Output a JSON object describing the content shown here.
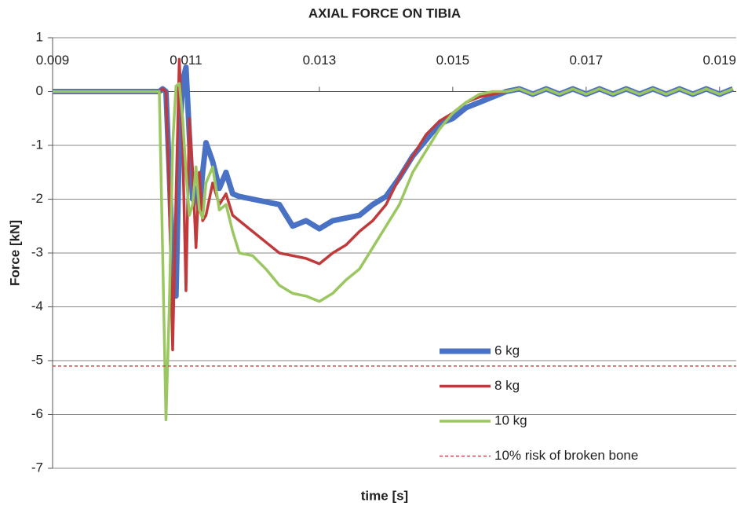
{
  "chart_data": {
    "type": "line",
    "title": "AXIAL FORCE ON TIBIA",
    "xlabel": "time [s]",
    "ylabel": "Force  [kN]",
    "xlim": [
      0.009,
      0.01925
    ],
    "xticks": [
      0.009,
      0.011,
      0.013,
      0.015,
      0.017,
      0.019
    ],
    "ylim": [
      -7,
      1
    ],
    "yticks": [
      1,
      0,
      -1,
      -2,
      -3,
      -4,
      -5,
      -6,
      -7
    ],
    "grid": true,
    "legend": "lower right",
    "x": [
      0.009,
      0.0106,
      0.01065,
      0.0107,
      0.01075,
      0.0108,
      0.01085,
      0.0109,
      0.01095,
      0.011,
      0.01105,
      0.0111,
      0.01115,
      0.0112,
      0.01125,
      0.0113,
      0.0114,
      0.0115,
      0.0116,
      0.0117,
      0.0118,
      0.012,
      0.0122,
      0.0124,
      0.0126,
      0.0128,
      0.013,
      0.0132,
      0.0134,
      0.0136,
      0.0138,
      0.014,
      0.0142,
      0.0144,
      0.0146,
      0.0148,
      0.015,
      0.0152,
      0.0154,
      0.0156,
      0.0158,
      0.016,
      0.0162,
      0.0164,
      0.0166,
      0.0168,
      0.017,
      0.0172,
      0.0174,
      0.0176,
      0.0178,
      0.018,
      0.0182,
      0.0184,
      0.0186,
      0.0188,
      0.019,
      0.0192
    ],
    "series": [
      {
        "name": "6 kg",
        "color": "#4a72c4",
        "width": 7,
        "values": [
          0,
          0,
          0.05,
          0,
          -1.5,
          -3.2,
          -3.8,
          -1,
          0.2,
          0.45,
          -0.8,
          -2,
          -1.8,
          -2.2,
          -1.5,
          -0.95,
          -1.3,
          -1.8,
          -1.5,
          -1.9,
          -1.95,
          -2.0,
          -2.05,
          -2.1,
          -2.5,
          -2.4,
          -2.55,
          -2.4,
          -2.35,
          -2.3,
          -2.1,
          -1.95,
          -1.6,
          -1.2,
          -0.9,
          -0.6,
          -0.5,
          -0.3,
          -0.2,
          -0.1,
          0,
          0.05,
          -0.05,
          0.05,
          -0.05,
          0.05,
          -0.05,
          0.05,
          -0.05,
          0.05,
          -0.05,
          0.05,
          -0.05,
          0.05,
          -0.05,
          0.05,
          -0.05,
          0.05
        ]
      },
      {
        "name": "8 kg",
        "color": "#c0393b",
        "width": 3.5,
        "values": [
          0,
          0,
          0.05,
          0,
          -2,
          -4.8,
          -2,
          0.6,
          -1,
          -3.7,
          -0.5,
          -1.5,
          -2.9,
          -1.5,
          -2.4,
          -2.3,
          -1.7,
          -2.1,
          -1.9,
          -2.3,
          -2.4,
          -2.6,
          -2.8,
          -3.0,
          -3.05,
          -3.1,
          -3.2,
          -3.0,
          -2.85,
          -2.6,
          -2.4,
          -2.1,
          -1.6,
          -1.2,
          -0.8,
          -0.55,
          -0.4,
          -0.2,
          -0.1,
          -0.05,
          0,
          0.05,
          -0.05,
          0.05,
          -0.05,
          0.05,
          -0.05,
          0.05,
          -0.05,
          0.05,
          -0.05,
          0.05,
          -0.05,
          0.05,
          -0.05,
          0.05,
          -0.05,
          0.05
        ]
      },
      {
        "name": "10 kg",
        "color": "#9bc760",
        "width": 3.5,
        "values": [
          0,
          0,
          -3,
          -6.1,
          -4,
          -1,
          0.1,
          0.15,
          -0.5,
          -1.5,
          -2.3,
          -2.1,
          -1.4,
          -2.2,
          -2.35,
          -1.7,
          -1.4,
          -2.2,
          -2.1,
          -2.6,
          -3.0,
          -3.05,
          -3.3,
          -3.6,
          -3.75,
          -3.8,
          -3.9,
          -3.75,
          -3.5,
          -3.3,
          -2.9,
          -2.5,
          -2.1,
          -1.5,
          -1.1,
          -0.7,
          -0.4,
          -0.2,
          -0.05,
          0,
          0,
          0.05,
          -0.05,
          0.05,
          -0.05,
          0.05,
          -0.05,
          0.05,
          -0.05,
          0.05,
          -0.05,
          0.05,
          -0.05,
          0.05,
          -0.05,
          0.05,
          -0.05,
          0.05
        ]
      },
      {
        "name": "10% risk of broken bone",
        "color": "#c0504d",
        "width": 1.5,
        "dashed": true,
        "x": [
          0.009,
          0.01925
        ],
        "values": [
          -5.1,
          -5.1
        ]
      }
    ]
  }
}
